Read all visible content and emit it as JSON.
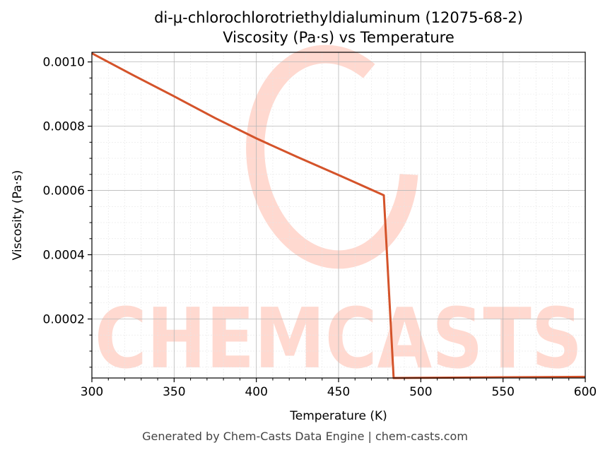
{
  "chart_data": {
    "type": "line",
    "title": "di-μ-chlorochlorotriethyldialuminum (12075-68-2)",
    "subtitle": "Viscosity (Pa·s) vs Temperature",
    "xlabel": "Temperature (K)",
    "ylabel": "Viscosity (Pa·s)",
    "xlim": [
      300,
      600
    ],
    "ylim": [
      1.64e-05,
      0.00103
    ],
    "xticks": [
      300,
      350,
      400,
      450,
      500,
      550,
      600
    ],
    "xtick_labels": [
      "300",
      "350",
      "400",
      "450",
      "500",
      "550",
      "600"
    ],
    "yticks": [
      0.0002,
      0.0004,
      0.0006,
      0.0008,
      0.001
    ],
    "ytick_labels": [
      "0.0002",
      "0.0004",
      "0.0006",
      "0.0008",
      "0.0010"
    ],
    "grid": true,
    "legend": "none",
    "series": [
      {
        "color": "#d4532a",
        "x": [
          300,
          325,
          350,
          375,
          400,
          425,
          450,
          477.5,
          483.5,
          500,
          550,
          600
        ],
        "y": [
          0.001027,
          0.000959,
          0.000893,
          0.000825,
          0.000762,
          0.000704,
          0.000648,
          0.000585,
          1.64e-05,
          1.7e-05,
          1.85e-05,
          2e-05
        ]
      }
    ]
  },
  "watermark": {
    "text": "CHEMCASTS",
    "color": "#ffd9d0"
  },
  "footer": "Generated by Chem-Casts Data Engine | chem-casts.com"
}
